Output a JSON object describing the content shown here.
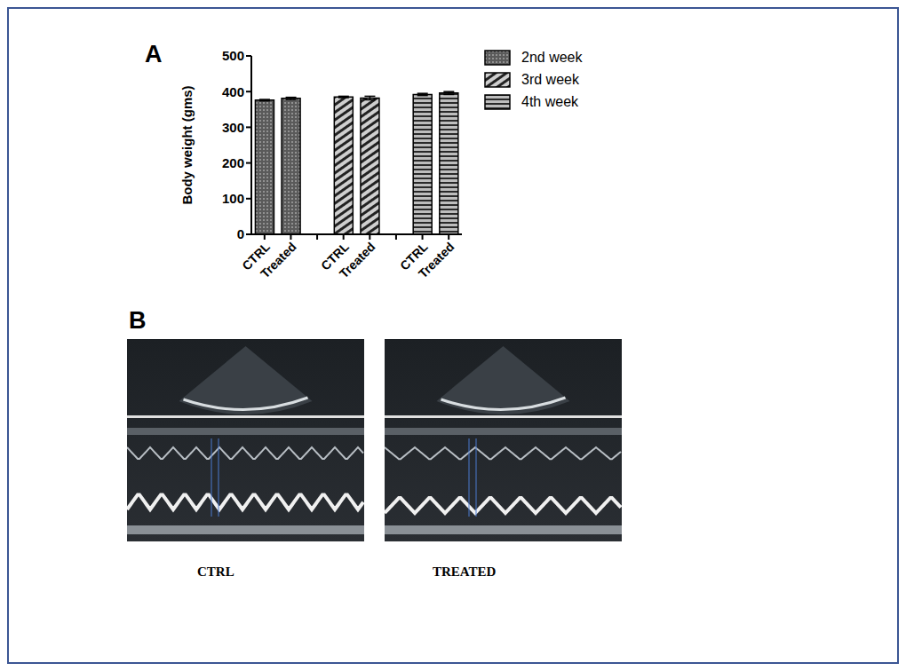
{
  "chart_data": {
    "type": "bar",
    "panel": "A",
    "y_label": "Body weight (gms)",
    "categories": [
      "CTRL",
      "Treated",
      null,
      "CTRL",
      "Treated",
      null,
      "CTRL",
      "Treated"
    ],
    "series": [
      {
        "name": "2nd week",
        "color": "#5a5a5a",
        "values": [
          376,
          381,
          null,
          null,
          null,
          null,
          null,
          null
        ],
        "errors": [
          2,
          3,
          null,
          null,
          null,
          null,
          null,
          null
        ]
      },
      {
        "name": "3rd week",
        "color": "#cfcfcf",
        "values": [
          null,
          null,
          null,
          385,
          382,
          null,
          null,
          null
        ],
        "errors": [
          null,
          null,
          null,
          2,
          5,
          null,
          null,
          null
        ]
      },
      {
        "name": "4th week",
        "color": "#bdbdbd",
        "values": [
          null,
          null,
          null,
          null,
          null,
          null,
          392,
          396
        ],
        "errors": [
          null,
          null,
          null,
          null,
          null,
          null,
          3,
          4
        ]
      }
    ],
    "ylim": [
      0,
      500
    ],
    "yticks": [
      0,
      100,
      200,
      300,
      400,
      500
    ],
    "grid": false,
    "legend": "right"
  },
  "panel_b": {
    "label": "B",
    "images": [
      {
        "caption": "CTRL"
      },
      {
        "caption": "TREATED"
      }
    ]
  }
}
